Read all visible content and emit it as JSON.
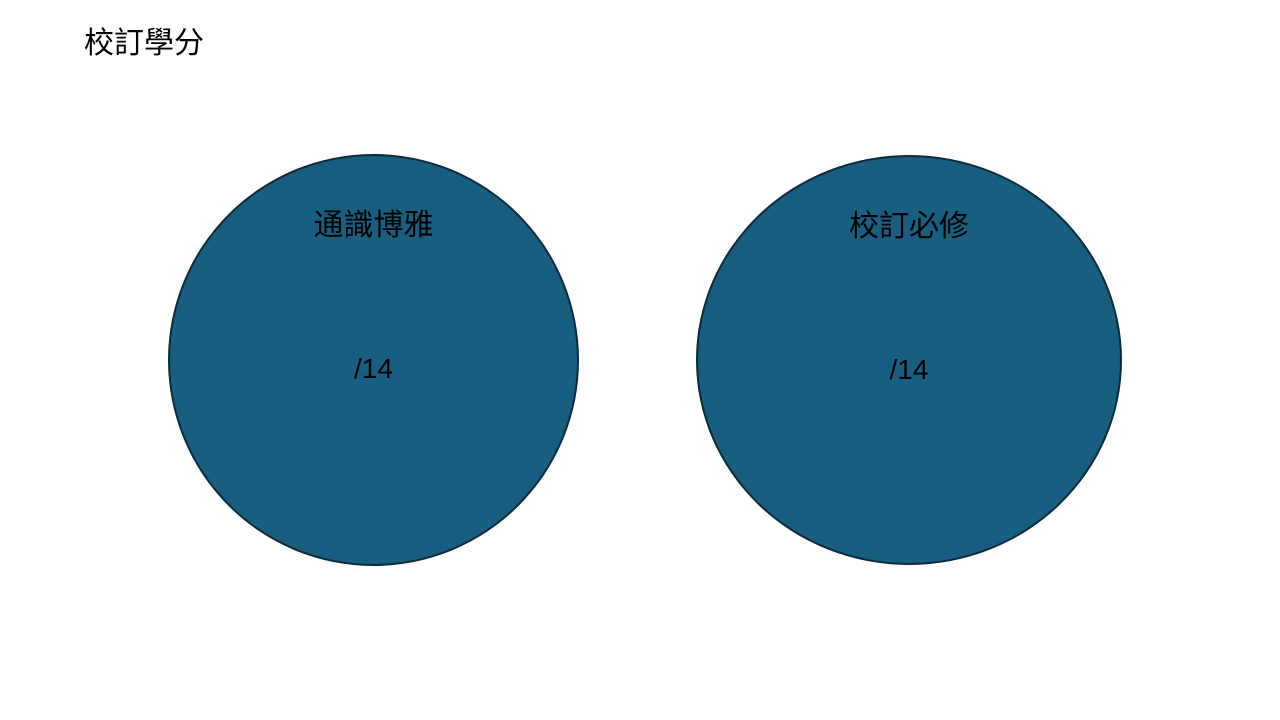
{
  "slide": {
    "title": "校訂學分",
    "circle_color": "#175e81",
    "circles": [
      {
        "label": "通識博雅",
        "value": "/14"
      },
      {
        "label": "校訂必修",
        "value": "/14"
      }
    ]
  }
}
